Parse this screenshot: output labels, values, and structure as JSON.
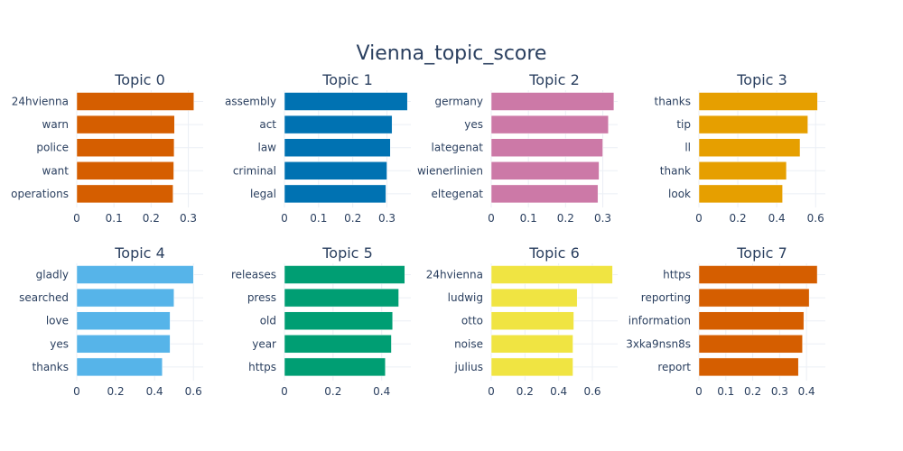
{
  "chart_data": {
    "type": "bar",
    "title": "Vienna_topic_score",
    "orientation": "horizontal",
    "grid": true,
    "panels": [
      {
        "title": "Topic 0",
        "color": "#D55E00",
        "categories": [
          "24hvienna",
          "warn",
          "police",
          "want",
          "operations"
        ],
        "values": [
          0.315,
          0.263,
          0.262,
          0.261,
          0.259
        ],
        "xlim": [
          0,
          0.34
        ],
        "xticks": [
          0,
          0.1,
          0.2,
          0.3
        ],
        "xticklabels": [
          "0",
          "0.1",
          "0.2",
          "0.3"
        ]
      },
      {
        "title": "Topic 1",
        "color": "#0072B2",
        "categories": [
          "assembly",
          "act",
          "law",
          "criminal",
          "legal"
        ],
        "values": [
          0.36,
          0.315,
          0.31,
          0.3,
          0.297
        ],
        "xlim": [
          0,
          0.37
        ],
        "xticks": [
          0,
          0.1,
          0.2,
          0.3
        ],
        "xticklabels": [
          "0",
          "0.1",
          "0.2",
          "0.3"
        ]
      },
      {
        "title": "Topic 2",
        "color": "#CC79A7",
        "categories": [
          "germany",
          "yes",
          "lategenat",
          "wienerlinien",
          "eltegenat"
        ],
        "values": [
          0.33,
          0.315,
          0.3,
          0.29,
          0.287
        ],
        "xlim": [
          0,
          0.34
        ],
        "xticks": [
          0,
          0.1,
          0.2,
          0.3
        ],
        "xticklabels": [
          "0",
          "0.1",
          "0.2",
          "0.3"
        ]
      },
      {
        "title": "Topic 3",
        "color": "#E69F00",
        "categories": [
          "thanks",
          "tip",
          "ll",
          "thank",
          "look"
        ],
        "values": [
          0.61,
          0.56,
          0.52,
          0.45,
          0.43
        ],
        "xlim": [
          0,
          0.65
        ],
        "xticks": [
          0,
          0.2,
          0.4,
          0.6
        ],
        "xticklabels": [
          "0",
          "0.2",
          "0.4",
          "0.6"
        ]
      },
      {
        "title": "Topic 4",
        "color": "#56B4E9",
        "categories": [
          "gladly",
          "searched",
          "love",
          "yes",
          "thanks"
        ],
        "values": [
          0.6,
          0.5,
          0.48,
          0.48,
          0.44
        ],
        "xlim": [
          0,
          0.65
        ],
        "xticks": [
          0,
          0.2,
          0.4,
          0.6
        ],
        "xticklabels": [
          "0",
          "0.2",
          "0.4",
          "0.6"
        ]
      },
      {
        "title": "Topic 5",
        "color": "#009E73",
        "categories": [
          "releases",
          "press",
          "old",
          "year",
          "https"
        ],
        "values": [
          0.495,
          0.47,
          0.445,
          0.44,
          0.415
        ],
        "xlim": [
          0,
          0.52
        ],
        "xticks": [
          0,
          0.2,
          0.4
        ],
        "xticklabels": [
          "0",
          "0.2",
          "0.4"
        ]
      },
      {
        "title": "Topic 6",
        "color": "#F0E442",
        "categories": [
          "24hvienna",
          "ludwig",
          "otto",
          "noise",
          "julius"
        ],
        "values": [
          0.72,
          0.51,
          0.49,
          0.485,
          0.485
        ],
        "xlim": [
          0,
          0.75
        ],
        "xticks": [
          0,
          0.2,
          0.4,
          0.6
        ],
        "xticklabels": [
          "0",
          "0.2",
          "0.4",
          "0.6"
        ]
      },
      {
        "title": "Topic 7",
        "color": "#D55E00",
        "categories": [
          "https",
          "reporting",
          "information",
          "3xka9nsn8s",
          "report"
        ],
        "values": [
          0.44,
          0.41,
          0.39,
          0.385,
          0.37
        ],
        "xlim": [
          0,
          0.47
        ],
        "xticks": [
          0,
          0.1,
          0.2,
          0.3,
          0.4
        ],
        "xticklabels": [
          "0",
          "0.1",
          "0.2",
          "0.3",
          "0.4"
        ]
      }
    ]
  }
}
